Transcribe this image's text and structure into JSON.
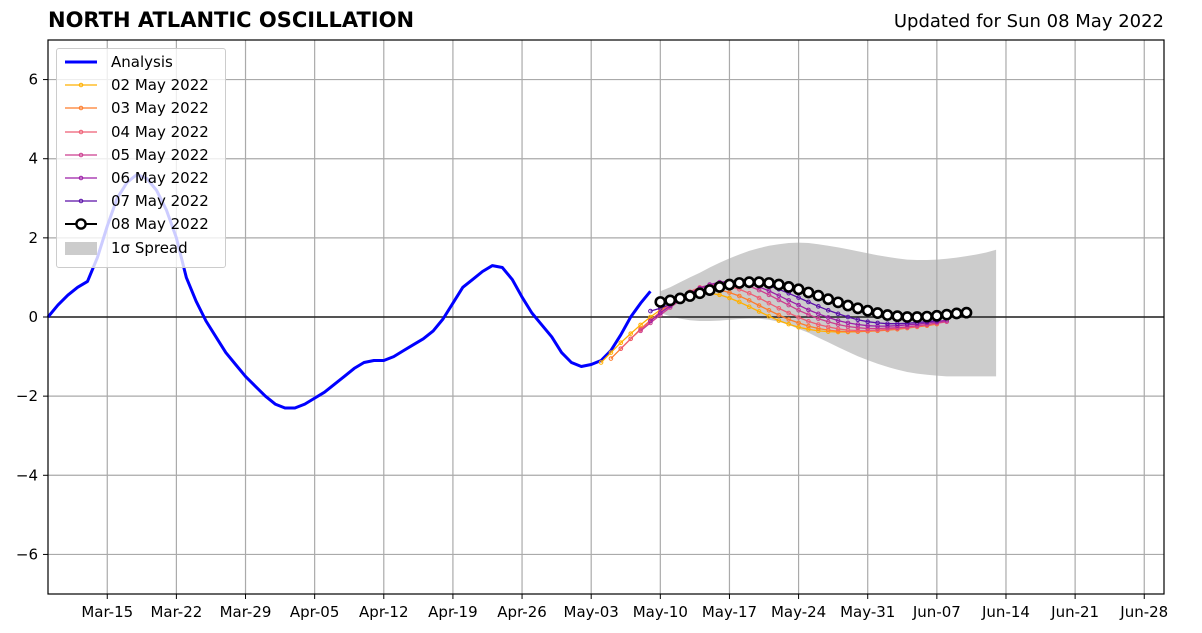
{
  "header": {
    "title": "NORTH ATLANTIC OSCILLATION",
    "updated": "Updated for Sun 08 May 2022"
  },
  "chart_data": {
    "type": "line",
    "title": "NORTH ATLANTIC OSCILLATION",
    "subtitle": "Updated for Sun 08 May 2022",
    "xlabel": "",
    "ylabel": "",
    "x_start": "2022-03-07",
    "xlim": [
      "2022-03-07",
      "2022-06-28"
    ],
    "ylim": [
      -7,
      7
    ],
    "grid": true,
    "legend_position": "top-left",
    "x_tick_labels": [
      "Mar-15",
      "Mar-22",
      "Mar-29",
      "Apr-05",
      "Apr-12",
      "Apr-19",
      "Apr-26",
      "May-03",
      "May-10",
      "May-17",
      "May-24",
      "May-31",
      "Jun-07",
      "Jun-14",
      "Jun-21",
      "Jun-28"
    ],
    "x_tick_dates": [
      "2022-03-13",
      "2022-03-20",
      "2022-03-27",
      "2022-04-03",
      "2022-04-10",
      "2022-04-17",
      "2022-04-24",
      "2022-05-01",
      "2022-05-08",
      "2022-05-15",
      "2022-05-22",
      "2022-05-29",
      "2022-06-05",
      "2022-06-12",
      "2022-06-19",
      "2022-06-26"
    ],
    "y_ticks": [
      -6,
      -4,
      -2,
      0,
      2,
      4,
      6
    ],
    "y_tick_labels": [
      "−6",
      "−4",
      "−2",
      "0",
      "2",
      "4",
      "6"
    ],
    "series": [
      {
        "name": "Analysis",
        "color": "#0000ff",
        "x_start": "2022-03-07",
        "values": [
          0.0,
          0.3,
          0.55,
          0.75,
          0.9,
          1.5,
          2.3,
          3.0,
          3.4,
          3.6,
          3.5,
          3.2,
          2.7,
          2.0,
          1.0,
          0.4,
          -0.1,
          -0.5,
          -0.9,
          -1.2,
          -1.5,
          -1.75,
          -2.0,
          -2.2,
          -2.3,
          -2.3,
          -2.2,
          -2.05,
          -1.9,
          -1.7,
          -1.5,
          -1.3,
          -1.15,
          -1.1,
          -1.1,
          -1.0,
          -0.85,
          -0.7,
          -0.55,
          -0.35,
          -0.05,
          0.35,
          0.75,
          0.95,
          1.15,
          1.3,
          1.25,
          0.95,
          0.5,
          0.1,
          -0.2,
          -0.5,
          -0.9,
          -1.15,
          -1.25,
          -1.2,
          -1.1,
          -0.85,
          -0.45,
          0.0,
          0.35,
          0.65
        ]
      },
      {
        "name": "02 May 2022",
        "color": "#ffb000",
        "x_start": "2022-05-02",
        "values": [
          -1.15,
          -0.9,
          -0.65,
          -0.42,
          -0.2,
          0.0,
          0.18,
          0.33,
          0.46,
          0.55,
          0.6,
          0.6,
          0.56,
          0.48,
          0.38,
          0.26,
          0.14,
          0.02,
          -0.09,
          -0.18,
          -0.26,
          -0.31,
          -0.35,
          -0.37,
          -0.38,
          -0.38,
          -0.37,
          -0.36,
          -0.34,
          -0.32,
          -0.3,
          -0.27,
          -0.24,
          -0.2
        ]
      },
      {
        "name": "03 May 2022",
        "color": "#fe7c2b",
        "x_start": "2022-05-03",
        "values": [
          -1.05,
          -0.8,
          -0.55,
          -0.3,
          -0.08,
          0.13,
          0.32,
          0.48,
          0.6,
          0.67,
          0.7,
          0.68,
          0.62,
          0.53,
          0.42,
          0.29,
          0.17,
          0.05,
          -0.06,
          -0.15,
          -0.23,
          -0.29,
          -0.33,
          -0.36,
          -0.37,
          -0.37,
          -0.36,
          -0.35,
          -0.33,
          -0.31,
          -0.28,
          -0.25,
          -0.22,
          -0.18
        ]
      },
      {
        "name": "04 May 2022",
        "color": "#ee5e74",
        "x_start": "2022-05-04",
        "values": [
          -0.8,
          -0.55,
          -0.32,
          -0.1,
          0.12,
          0.32,
          0.5,
          0.64,
          0.75,
          0.8,
          0.81,
          0.77,
          0.7,
          0.6,
          0.48,
          0.35,
          0.22,
          0.1,
          -0.01,
          -0.11,
          -0.19,
          -0.25,
          -0.3,
          -0.33,
          -0.34,
          -0.34,
          -0.33,
          -0.31,
          -0.29,
          -0.27,
          -0.24,
          -0.2,
          -0.16,
          -0.12
        ]
      },
      {
        "name": "05 May 2022",
        "color": "#cc3d8f",
        "x_start": "2022-05-06",
        "values": [
          -0.35,
          -0.15,
          0.05,
          0.24,
          0.42,
          0.58,
          0.71,
          0.81,
          0.87,
          0.88,
          0.85,
          0.78,
          0.68,
          0.56,
          0.43,
          0.3,
          0.17,
          0.06,
          -0.04,
          -0.12,
          -0.19,
          -0.24,
          -0.27,
          -0.29,
          -0.29,
          -0.28,
          -0.27,
          -0.25,
          -0.22,
          -0.19,
          -0.15,
          -0.11
        ]
      },
      {
        "name": "06 May 2022",
        "color": "#9c1ea7",
        "x_start": "2022-05-07",
        "values": [
          -0.1,
          0.1,
          0.28,
          0.45,
          0.6,
          0.73,
          0.82,
          0.88,
          0.9,
          0.89,
          0.84,
          0.76,
          0.66,
          0.54,
          0.42,
          0.3,
          0.18,
          0.08,
          -0.01,
          -0.09,
          -0.15,
          -0.19,
          -0.22,
          -0.23,
          -0.23,
          -0.22,
          -0.2,
          -0.18,
          -0.15,
          -0.12,
          -0.08
        ]
      },
      {
        "name": "07 May 2022",
        "color": "#5a0fa8",
        "x_start": "2022-05-07",
        "values": [
          0.15,
          0.22,
          0.32,
          0.42,
          0.55,
          0.66,
          0.75,
          0.83,
          0.88,
          0.9,
          0.89,
          0.85,
          0.79,
          0.7,
          0.6,
          0.49,
          0.38,
          0.27,
          0.17,
          0.08,
          0.0,
          -0.07,
          -0.12,
          -0.15,
          -0.17,
          -0.17,
          -0.16,
          -0.14,
          -0.12,
          -0.09
        ]
      },
      {
        "name": "08 May 2022",
        "color": "#000000",
        "x_start": "2022-05-08",
        "values": [
          0.38,
          0.42,
          0.47,
          0.53,
          0.6,
          0.68,
          0.76,
          0.82,
          0.86,
          0.88,
          0.88,
          0.86,
          0.82,
          0.76,
          0.7,
          0.62,
          0.54,
          0.45,
          0.37,
          0.29,
          0.22,
          0.16,
          0.1,
          0.05,
          0.02,
          0.0,
          0.0,
          0.01,
          0.03,
          0.06,
          0.09,
          0.11
        ]
      }
    ],
    "spread": {
      "name": "1σ Spread",
      "color": "#cccccc",
      "x_start": "2022-05-08",
      "upper": [
        0.65,
        0.75,
        0.88,
        1.0,
        1.12,
        1.25,
        1.37,
        1.48,
        1.58,
        1.67,
        1.74,
        1.8,
        1.84,
        1.87,
        1.88,
        1.87,
        1.84,
        1.8,
        1.76,
        1.71,
        1.66,
        1.61,
        1.56,
        1.52,
        1.48,
        1.45,
        1.44,
        1.44,
        1.45,
        1.47,
        1.5,
        1.54,
        1.58,
        1.63,
        1.7
      ],
      "lower": [
        0.1,
        0.02,
        -0.04,
        -0.08,
        -0.1,
        -0.1,
        -0.09,
        -0.07,
        -0.05,
        -0.04,
        -0.04,
        -0.07,
        -0.12,
        -0.2,
        -0.3,
        -0.4,
        -0.52,
        -0.64,
        -0.76,
        -0.88,
        -0.99,
        -1.09,
        -1.18,
        -1.26,
        -1.33,
        -1.39,
        -1.43,
        -1.46,
        -1.48,
        -1.5,
        -1.5,
        -1.5,
        -1.5,
        -1.5,
        -1.5
      ]
    }
  }
}
